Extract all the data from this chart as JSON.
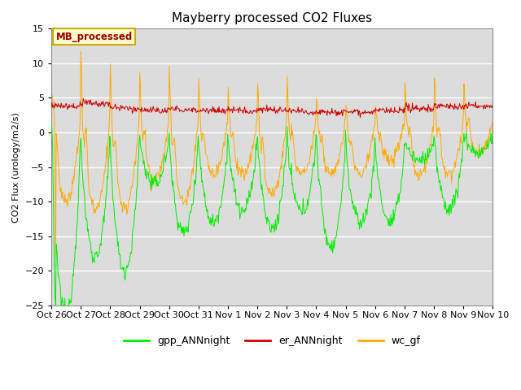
{
  "title": "Mayberry processed CO2 Fluxes",
  "ylabel": "CO2 Flux (urology/m2/s)",
  "ylim": [
    -25,
    15
  ],
  "yticks": [
    -25,
    -20,
    -15,
    -10,
    -5,
    0,
    5,
    10,
    15
  ],
  "bg_color": "#dcdcdc",
  "fig_color": "#ffffff",
  "line_colors": {
    "gpp": "#00ee00",
    "er": "#cc0000",
    "wc": "#ffaa00"
  },
  "legend_label": "MB_processed",
  "legend_text_color": "#990000",
  "legend_bg": "#ffffcc",
  "legend_edge": "#ccaa00",
  "series_labels": [
    "gpp_ANNnight",
    "er_ANNnight",
    "wc_gf"
  ],
  "xtick_labels": [
    "Oct 26",
    "Oct 27",
    "Oct 28",
    "Oct 29",
    "Oct 30",
    "Oct 31",
    "Nov 1",
    "Nov 2",
    "Nov 3",
    "Nov 4",
    "Nov 5",
    "Nov 6",
    "Nov 7",
    "Nov 8",
    "Nov 9",
    "Nov 10"
  ],
  "n_days": 15,
  "n_per_day": 48,
  "gpp_depths": [
    -25,
    -17,
    -19,
    -7,
    -14,
    -12,
    -11,
    -13,
    -11,
    -16,
    -11,
    -11,
    -3,
    -10,
    -3
  ],
  "wc_peaks": [
    9,
    10.5,
    7.5,
    6,
    7,
    5,
    4,
    5.5,
    5.5,
    3,
    2,
    1.5,
    5.5,
    6,
    5
  ],
  "wc_dips": [
    -12,
    -13,
    -13,
    -9,
    -12,
    -8,
    -8,
    -11,
    -8,
    -8,
    -8,
    -6,
    -8,
    -8,
    -5
  ],
  "gpp_base": [
    -1,
    -1,
    -1,
    -0.5,
    -0.5,
    -1,
    -0.5,
    -1,
    -0.5,
    -0.5,
    -2,
    -2,
    -1,
    -1,
    0
  ],
  "er_base": [
    3.8,
    4.2,
    3.5,
    3.2,
    3.3,
    3.2,
    3.2,
    3.3,
    3.0,
    3.0,
    3.0,
    3.1,
    3.5,
    3.8,
    3.8
  ]
}
